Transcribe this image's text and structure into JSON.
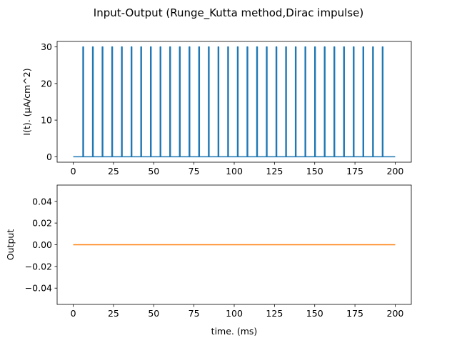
{
  "suptitle": "Input-Output (Runge_Kutta method,Dirac impulse)",
  "chart_data": [
    {
      "type": "line",
      "title": "",
      "xlabel": "",
      "ylabel": "I(t). (μA/cm^2)",
      "xlim": [
        -10,
        210
      ],
      "ylim": [
        -1.5,
        31.5
      ],
      "xticks": [
        0,
        25,
        50,
        75,
        100,
        125,
        150,
        175,
        200
      ],
      "yticks": [
        0,
        10,
        20,
        30
      ],
      "grid": false,
      "color": "#1f77b4",
      "series": [
        {
          "name": "",
          "baseline": 0,
          "impulse_height": 30,
          "impulse_times": [
            6,
            12,
            18,
            24,
            30,
            36,
            42,
            48,
            54,
            60,
            66,
            72,
            78,
            84,
            90,
            96,
            102,
            108,
            114,
            120,
            126,
            132,
            138,
            144,
            150,
            156,
            162,
            168,
            174,
            180,
            186,
            192
          ],
          "x_range": [
            0,
            200
          ]
        }
      ]
    },
    {
      "type": "line",
      "title": "",
      "xlabel": "time. (ms)",
      "ylabel": "Output",
      "xlim": [
        -10,
        210
      ],
      "ylim": [
        -0.055,
        0.055
      ],
      "xticks": [
        0,
        25,
        50,
        75,
        100,
        125,
        150,
        175,
        200
      ],
      "yticks": [
        -0.04,
        -0.02,
        0.0,
        0.02,
        0.04
      ],
      "ytick_labels": [
        "−0.04",
        "−0.02",
        "0.00",
        "0.02",
        "0.04"
      ],
      "grid": false,
      "color": "#ff7f0e",
      "series": [
        {
          "name": "",
          "x": [
            0,
            200
          ],
          "y": [
            0,
            0
          ]
        }
      ]
    }
  ]
}
